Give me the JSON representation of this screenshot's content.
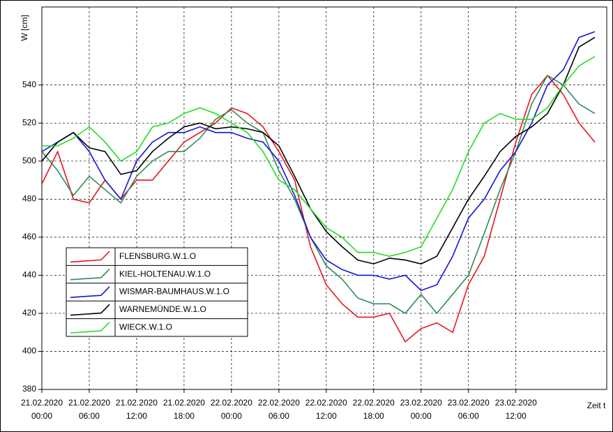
{
  "chart_data": {
    "type": "line",
    "y_label": "W [cm]",
    "x_label": "Zeit t",
    "x": [
      "21.02.2020 00:00",
      "21.02.2020 02:00",
      "21.02.2020 04:00",
      "21.02.2020 06:00",
      "21.02.2020 08:00",
      "21.02.2020 10:00",
      "21.02.2020 12:00",
      "21.02.2020 14:00",
      "21.02.2020 16:00",
      "21.02.2020 18:00",
      "21.02.2020 20:00",
      "21.02.2020 22:00",
      "22.02.2020 00:00",
      "22.02.2020 02:00",
      "22.02.2020 04:00",
      "22.02.2020 06:00",
      "22.02.2020 08:00",
      "22.02.2020 10:00",
      "22.02.2020 12:00",
      "22.02.2020 14:00",
      "22.02.2020 16:00",
      "22.02.2020 18:00",
      "22.02.2020 20:00",
      "22.02.2020 22:00",
      "23.02.2020 00:00",
      "23.02.2020 02:00",
      "23.02.2020 04:00",
      "23.02.2020 06:00",
      "23.02.2020 08:00",
      "23.02.2020 10:00",
      "23.02.2020 12:00",
      "23.02.2020 14:00",
      "23.02.2020 16:00",
      "23.02.2020 18:00",
      "23.02.2020 20:00",
      "23.02.2020 22:00"
    ],
    "series": [
      {
        "name": "FLENSBURG.W.1.O",
        "color": "#e8141b",
        "values": [
          488,
          505,
          480,
          478,
          490,
          480,
          490,
          490,
          500,
          510,
          515,
          520,
          528,
          525,
          518,
          505,
          490,
          455,
          435,
          425,
          418,
          418,
          420,
          405,
          412,
          415,
          410,
          435,
          450,
          480,
          510,
          535,
          545,
          535,
          520,
          510
        ]
      },
      {
        "name": "KIEL-HOLTENAU.W.1.O",
        "color": "#2e8b57",
        "values": [
          505,
          495,
          482,
          492,
          485,
          478,
          492,
          500,
          505,
          505,
          512,
          522,
          527,
          520,
          515,
          495,
          480,
          460,
          445,
          438,
          428,
          425,
          425,
          420,
          430,
          420,
          430,
          440,
          462,
          485,
          505,
          530,
          545,
          540,
          530,
          525
        ]
      },
      {
        "name": "WISMAR-BAUMHAUS.W.1.O",
        "color": "#1414d8",
        "values": [
          505,
          510,
          515,
          505,
          490,
          480,
          500,
          510,
          515,
          515,
          518,
          515,
          515,
          512,
          510,
          500,
          482,
          460,
          448,
          443,
          440,
          440,
          438,
          440,
          432,
          435,
          450,
          470,
          480,
          495,
          505,
          520,
          540,
          548,
          565,
          568
        ]
      },
      {
        "name": "WARNEMÜNDE.W.1.O",
        "color": "#000000",
        "values": [
          500,
          510,
          515,
          507,
          505,
          493,
          495,
          505,
          512,
          518,
          520,
          517,
          518,
          517,
          515,
          508,
          492,
          475,
          463,
          455,
          448,
          446,
          449,
          448,
          446,
          450,
          465,
          480,
          492,
          505,
          513,
          518,
          525,
          540,
          560,
          565
        ]
      },
      {
        "name": "WIECK.W.1.O",
        "color": "#22dd22",
        "values": [
          508,
          508,
          512,
          518,
          510,
          500,
          505,
          518,
          520,
          525,
          528,
          525,
          520,
          515,
          505,
          490,
          485,
          475,
          465,
          460,
          452,
          452,
          450,
          452,
          455,
          470,
          485,
          505,
          520,
          525,
          522,
          522,
          528,
          540,
          550,
          555
        ]
      }
    ],
    "xlim": [
      "21.02.2020 00:00",
      "23.02.2020 23:30"
    ],
    "xticks": [
      "21.02.2020 00:00",
      "21.02.2020 06:00",
      "21.02.2020 12:00",
      "21.02.2020 18:00",
      "22.02.2020 00:00",
      "22.02.2020 06:00",
      "22.02.2020 12:00",
      "22.02.2020 18:00",
      "23.02.2020 00:00",
      "23.02.2020 06:00",
      "23.02.2020 12:00"
    ],
    "ylim": [
      380,
      581
    ],
    "yticks": [
      380,
      400,
      420,
      440,
      460,
      480,
      500,
      520,
      540
    ],
    "grid": true
  }
}
